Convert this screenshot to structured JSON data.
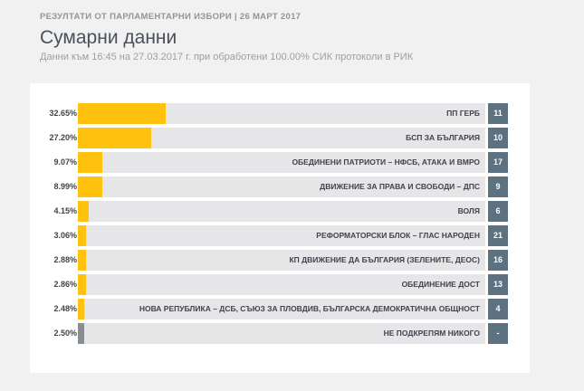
{
  "header": {
    "top_line": "РЕЗУЛТАТИ ОТ ПАРЛАМЕНТАРНИ ИЗБОРИ | 26 МАРТ 2017",
    "title": "Сумарни данни",
    "subtitle": "Данни към 16:45 на 27.03.2017 г. при обработени 100.00% СИК протоколи в РИК"
  },
  "colors": {
    "bar": "#ffc20e",
    "bar_other": "#8a8d90",
    "seats_badge": "#5d7280",
    "track": "#e6e6e8"
  },
  "results": [
    {
      "pct_label": "32.65%",
      "pct": 32.65,
      "name": "ПП ГЕРБ",
      "seats": "11"
    },
    {
      "pct_label": "27.20%",
      "pct": 27.2,
      "name": "БСП ЗА БЪЛГАРИЯ",
      "seats": "10"
    },
    {
      "pct_label": "9.07%",
      "pct": 9.07,
      "name": "ОБЕДИНЕНИ ПАТРИОТИ – НФСБ, АТАКА И ВМРО",
      "seats": "17"
    },
    {
      "pct_label": "8.99%",
      "pct": 8.99,
      "name": "ДВИЖЕНИЕ ЗА ПРАВА И СВОБОДИ – ДПС",
      "seats": "9"
    },
    {
      "pct_label": "4.15%",
      "pct": 4.15,
      "name": "ВОЛЯ",
      "seats": "6"
    },
    {
      "pct_label": "3.06%",
      "pct": 3.06,
      "name": "РЕФОРМАТОРСКИ БЛОК – ГЛАС НАРОДЕН",
      "seats": "21"
    },
    {
      "pct_label": "2.88%",
      "pct": 2.88,
      "name": "КП ДВИЖЕНИЕ ДА БЪЛГАРИЯ (ЗЕЛЕНИТЕ, ДЕОС)",
      "seats": "16"
    },
    {
      "pct_label": "2.86%",
      "pct": 2.86,
      "name": "ОБЕДИНЕНИЕ ДОСТ",
      "seats": "13"
    },
    {
      "pct_label": "2.48%",
      "pct": 2.48,
      "name": "НОВА РЕПУБЛИКА – ДСБ, СЪЮЗ ЗА ПЛОВДИВ, БЪЛГАРСКА ДЕМОКРАТИЧНА ОБЩНОСТ",
      "seats": "4"
    },
    {
      "pct_label": "2.50%",
      "pct": 2.5,
      "name": "НЕ ПОДКРЕПЯМ НИКОГО",
      "seats": "-",
      "other": true
    }
  ]
}
